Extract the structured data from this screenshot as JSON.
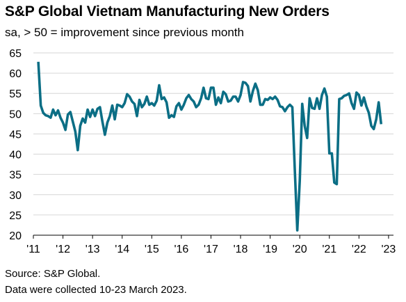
{
  "chart_data": {
    "type": "line",
    "title": "S&P Global Vietnam Manufacturing New Orders",
    "subtitle": "sa, > 50 = improvement since previous month",
    "xlabel": "",
    "ylabel": "",
    "ylim": [
      20,
      65
    ],
    "xlim": [
      "2011-03",
      "2023-03"
    ],
    "y_ticks": [
      "20",
      "25",
      "30",
      "35",
      "40",
      "45",
      "50",
      "55",
      "60",
      "65"
    ],
    "x_ticks": [
      {
        "label": "'11",
        "date": "2011-01"
      },
      {
        "label": "'12",
        "date": "2012-01"
      },
      {
        "label": "'13",
        "date": "2013-01"
      },
      {
        "label": "'14",
        "date": "2014-01"
      },
      {
        "label": "'15",
        "date": "2015-01"
      },
      {
        "label": "'16",
        "date": "2016-01"
      },
      {
        "label": "'17",
        "date": "2017-01"
      },
      {
        "label": "'18",
        "date": "2018-01"
      },
      {
        "label": "'19",
        "date": "2019-01"
      },
      {
        "label": "'20",
        "date": "2020-01"
      },
      {
        "label": "'21",
        "date": "2021-01"
      },
      {
        "label": "'22",
        "date": "2022-01"
      },
      {
        "label": "'23",
        "date": "2023-01"
      }
    ],
    "grid": true,
    "line_color": "#0b6e85",
    "series": [
      {
        "start": "2011-03",
        "frequency": "monthly",
        "values": [
          62.8,
          52.0,
          50.2,
          49.6,
          49.4,
          49.0,
          51.0,
          49.6,
          50.8,
          49.0,
          47.8,
          46.0,
          49.8,
          50.4,
          48.0,
          45.6,
          41.0,
          47.0,
          48.8,
          47.8,
          51.0,
          49.2,
          51.0,
          49.4,
          51.2,
          51.6,
          48.0,
          44.8,
          47.8,
          49.4,
          52.0,
          48.6,
          52.2,
          52.0,
          51.6,
          52.6,
          54.8,
          54.2,
          53.0,
          52.4,
          49.4,
          53.4,
          51.6,
          52.4,
          54.2,
          52.2,
          52.6,
          52.0,
          53.2,
          57.0,
          53.6,
          54.0,
          52.8,
          49.0,
          49.6,
          49.2,
          51.8,
          52.6,
          51.0,
          52.2,
          53.8,
          54.6,
          53.6,
          53.0,
          51.6,
          52.2,
          53.8,
          56.4,
          53.8,
          53.6,
          56.4,
          56.4,
          52.2,
          54.0,
          52.6,
          55.4,
          54.8,
          53.0,
          53.2,
          54.2,
          54.2,
          53.0,
          54.6,
          57.8,
          57.6,
          56.8,
          53.0,
          55.6,
          57.4,
          55.8,
          52.2,
          52.2,
          53.6,
          53.4,
          54.0,
          53.6,
          54.2,
          53.4,
          51.8,
          51.6,
          50.6,
          51.6,
          52.2,
          51.6,
          36.0,
          21.2,
          33.4,
          52.4,
          47.0,
          44.0,
          53.8,
          51.4,
          51.2,
          53.8,
          51.2,
          54.6,
          56.2,
          54.2,
          40.2,
          40.2,
          33.0,
          32.6,
          53.6,
          53.8,
          54.4,
          54.6,
          55.0,
          52.6,
          51.2,
          55.2,
          54.6,
          52.0,
          54.0,
          51.8,
          50.2,
          47.0,
          46.2,
          48.6,
          52.8,
          47.4
        ]
      }
    ]
  },
  "footer": {
    "source": "Source: S&P Global.",
    "note": "Data were collected 10-23 March 2023."
  }
}
